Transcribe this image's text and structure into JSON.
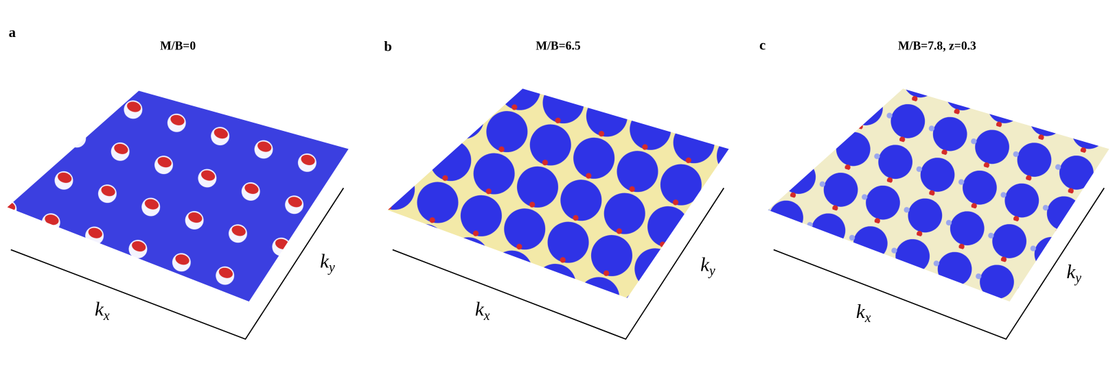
{
  "panels": [
    {
      "label": "a",
      "title": "M/B=0",
      "x_axis": {
        "symbol": "k",
        "sub": "x"
      },
      "y_axis": {
        "symbol": "k",
        "sub": "y"
      }
    },
    {
      "label": "b",
      "title": "M/B=6.5",
      "x_axis": {
        "symbol": "k",
        "sub": "x"
      },
      "y_axis": {
        "symbol": "k",
        "sub": "y"
      }
    },
    {
      "label": "c",
      "title": "M/B=7.8, z=0.3",
      "x_axis": {
        "symbol": "k",
        "sub": "x"
      },
      "y_axis": {
        "symbol": "k",
        "sub": "y"
      }
    }
  ]
}
